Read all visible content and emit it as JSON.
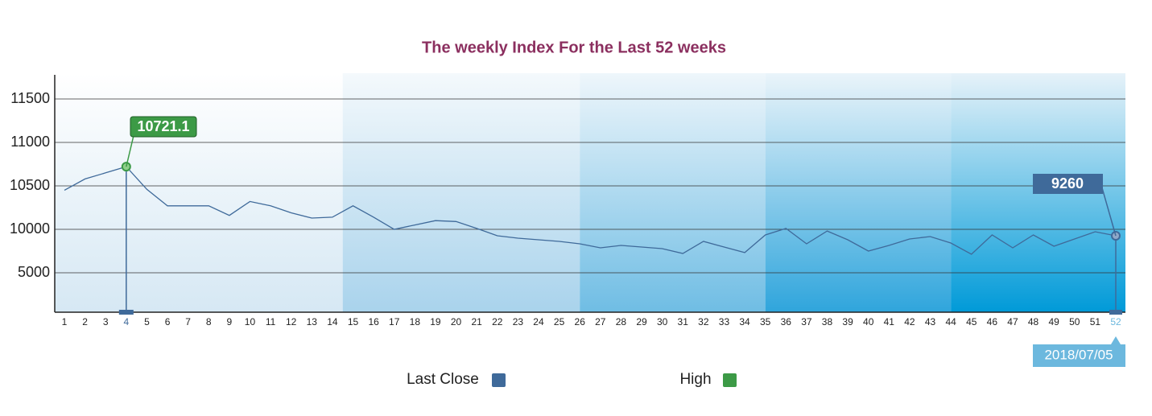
{
  "chart_data": {
    "type": "line",
    "title": "The weekly Index For the Last 52 weeks",
    "categories": [
      "1",
      "2",
      "3",
      "4",
      "5",
      "6",
      "7",
      "8",
      "9",
      "10",
      "11",
      "12",
      "13",
      "14",
      "15",
      "16",
      "17",
      "18",
      "19",
      "20",
      "21",
      "22",
      "23",
      "24",
      "25",
      "26",
      "27",
      "28",
      "29",
      "30",
      "31",
      "32",
      "33",
      "34",
      "35",
      "36",
      "37",
      "38",
      "39",
      "40",
      "41",
      "42",
      "43",
      "44",
      "45",
      "46",
      "47",
      "48",
      "49",
      "50",
      "51",
      "52"
    ],
    "series": [
      {
        "name": "Last Close",
        "color": "#3f6a9a",
        "values": [
          10450,
          10580,
          10650,
          10721.1,
          10460,
          10270,
          10270,
          10270,
          10160,
          10320,
          10270,
          10190,
          10130,
          10140,
          10270,
          10140,
          10000,
          10050,
          10100,
          10090,
          10010,
          9260,
          8980,
          8800,
          8610,
          8330,
          7870,
          8150,
          7960,
          7780,
          7220,
          8610,
          7960,
          7320,
          9350,
          10010,
          8330,
          9810,
          8800,
          7500,
          8150,
          8890,
          9170,
          8430,
          7130,
          9350,
          7870,
          9350,
          8060,
          8890,
          9720,
          9260
        ]
      }
    ],
    "legend": [
      {
        "name": "Last Close",
        "color": "#3f6a9a"
      },
      {
        "name": "High",
        "color": "#3c9a46"
      }
    ],
    "last_date": "2018/07/05",
    "ylim": [
      0,
      11800
    ],
    "yticks": [
      5000,
      10000,
      10500,
      11000,
      11500
    ],
    "grid": true
  }
}
